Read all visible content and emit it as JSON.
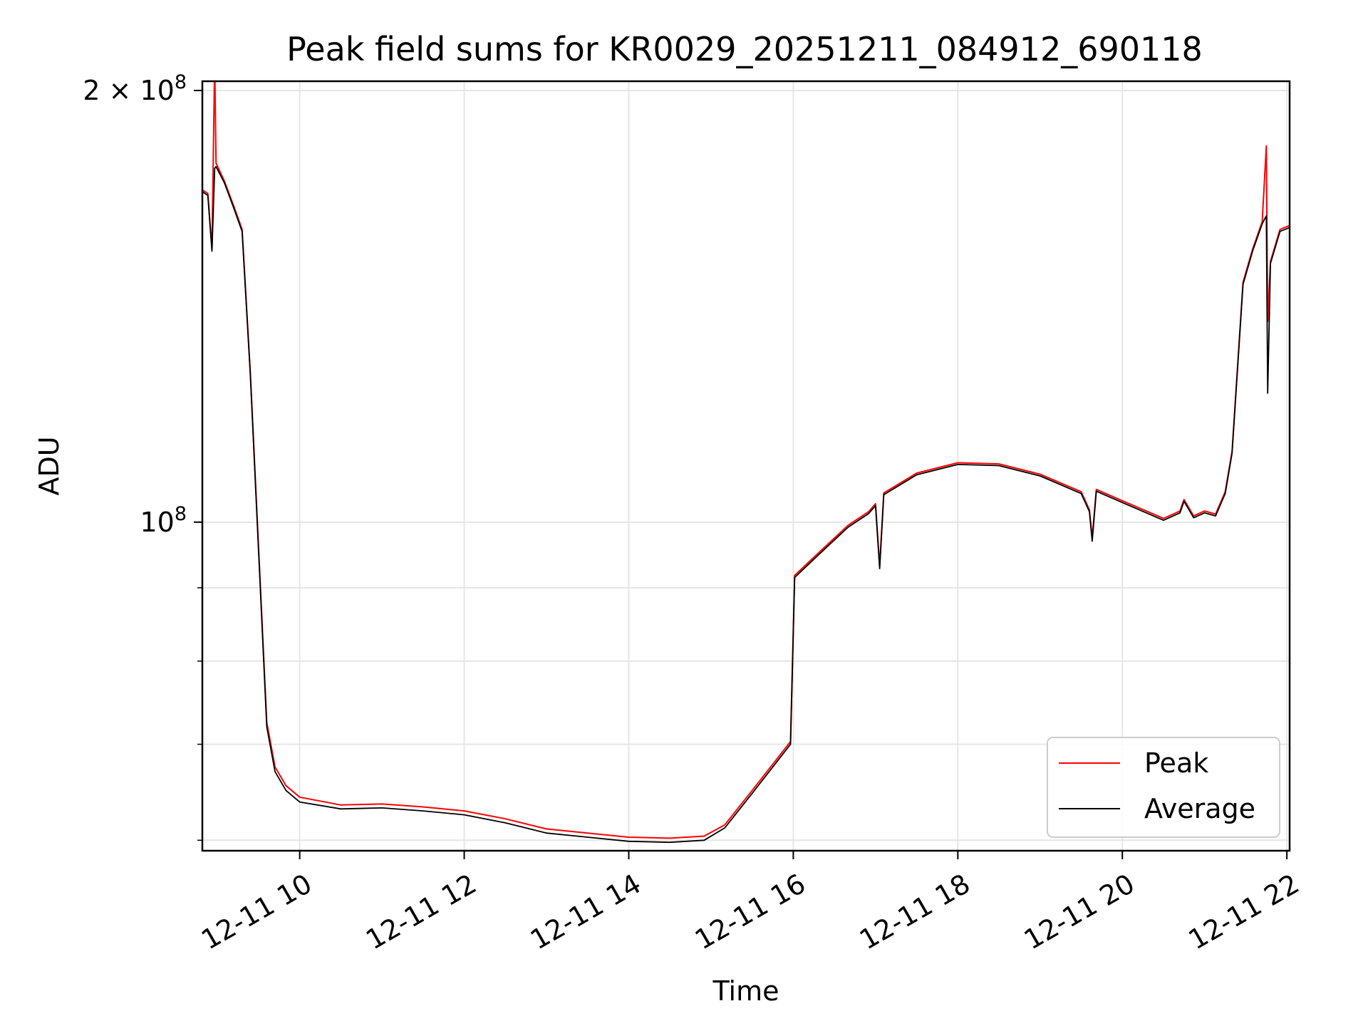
{
  "chart_data": {
    "type": "line",
    "title": "Peak field sums for KR0029_20251211_084912_690118",
    "xlabel": "Time",
    "ylabel": "ADU",
    "yscale": "log",
    "grid": true,
    "legend_position": "lower-right",
    "xlim": [
      "2025-12-11T08:49",
      "2025-12-11T22:02"
    ],
    "ylim": [
      59000000,
      203000000
    ],
    "x_ticks": [
      {
        "value": "2025-12-11T10:00",
        "label": "12-11 10"
      },
      {
        "value": "2025-12-11T12:00",
        "label": "12-11 12"
      },
      {
        "value": "2025-12-11T14:00",
        "label": "12-11 14"
      },
      {
        "value": "2025-12-11T16:00",
        "label": "12-11 16"
      },
      {
        "value": "2025-12-11T18:00",
        "label": "12-11 18"
      },
      {
        "value": "2025-12-11T20:00",
        "label": "12-11 20"
      },
      {
        "value": "2025-12-11T22:00",
        "label": "12-11 22"
      }
    ],
    "y_major_ticks": [
      {
        "value": 100000000,
        "base": "10",
        "exp": "8",
        "prefix": ""
      },
      {
        "value": 200000000,
        "base": "10",
        "exp": "8",
        "prefix": "2 × "
      }
    ],
    "y_minor_ticks": [
      60000000,
      70000000,
      80000000,
      90000000
    ],
    "series": [
      {
        "name": "Peak",
        "color": "#ff0000",
        "points": [
          [
            "2025-12-11T08:49",
            170500000
          ],
          [
            "2025-12-11T08:53",
            169500000
          ],
          [
            "2025-12-11T08:56",
            155000000
          ],
          [
            "2025-12-11T08:58",
            210000000
          ],
          [
            "2025-12-11T08:59",
            178000000
          ],
          [
            "2025-12-11T09:05",
            173000000
          ],
          [
            "2025-12-11T09:12",
            166000000
          ],
          [
            "2025-12-11T09:18",
            160000000
          ],
          [
            "2025-12-11T09:24",
            127000000
          ],
          [
            "2025-12-11T09:30",
            96000000
          ],
          [
            "2025-12-11T09:36",
            72500000
          ],
          [
            "2025-12-11T09:42",
            67500000
          ],
          [
            "2025-12-11T09:50",
            65500000
          ],
          [
            "2025-12-11T10:00",
            64300000
          ],
          [
            "2025-12-11T10:30",
            63500000
          ],
          [
            "2025-12-11T11:00",
            63600000
          ],
          [
            "2025-12-11T11:30",
            63300000
          ],
          [
            "2025-12-11T12:00",
            62900000
          ],
          [
            "2025-12-11T12:30",
            62100000
          ],
          [
            "2025-12-11T13:00",
            61100000
          ],
          [
            "2025-12-11T13:30",
            60700000
          ],
          [
            "2025-12-11T14:00",
            60300000
          ],
          [
            "2025-12-11T14:30",
            60200000
          ],
          [
            "2025-12-11T14:55",
            60400000
          ],
          [
            "2025-12-11T15:10",
            61500000
          ],
          [
            "2025-12-11T15:30",
            65000000
          ],
          [
            "2025-12-11T15:58",
            70300000
          ],
          [
            "2025-12-11T16:01",
            91800000
          ],
          [
            "2025-12-11T16:20",
            95500000
          ],
          [
            "2025-12-11T16:40",
            99500000
          ],
          [
            "2025-12-11T16:55",
            101700000
          ],
          [
            "2025-12-11T17:00",
            103000000
          ],
          [
            "2025-12-11T17:03",
            93200000
          ],
          [
            "2025-12-11T17:06",
            104800000
          ],
          [
            "2025-12-11T17:30",
            108200000
          ],
          [
            "2025-12-11T18:00",
            110000000
          ],
          [
            "2025-12-11T18:30",
            109800000
          ],
          [
            "2025-12-11T19:00",
            108000000
          ],
          [
            "2025-12-11T19:30",
            105000000
          ],
          [
            "2025-12-11T19:36",
            102000000
          ],
          [
            "2025-12-11T19:38",
            97500000
          ],
          [
            "2025-12-11T19:41",
            105400000
          ],
          [
            "2025-12-11T20:00",
            103500000
          ],
          [
            "2025-12-11T20:30",
            100600000
          ],
          [
            "2025-12-11T20:42",
            101800000
          ],
          [
            "2025-12-11T20:45",
            103700000
          ],
          [
            "2025-12-11T20:52",
            101000000
          ],
          [
            "2025-12-11T21:00",
            101800000
          ],
          [
            "2025-12-11T21:08",
            101300000
          ],
          [
            "2025-12-11T21:15",
            105000000
          ],
          [
            "2025-12-11T21:20",
            112000000
          ],
          [
            "2025-12-11T21:28",
            147000000
          ],
          [
            "2025-12-11T21:35",
            155000000
          ],
          [
            "2025-12-11T21:42",
            162000000
          ],
          [
            "2025-12-11T21:45",
            183000000
          ],
          [
            "2025-12-11T21:46",
            138000000
          ],
          [
            "2025-12-11T21:48",
            152000000
          ],
          [
            "2025-12-11T21:55",
            160000000
          ],
          [
            "2025-12-11T22:02",
            161000000
          ]
        ]
      },
      {
        "name": "Average",
        "color": "#000000",
        "points": [
          [
            "2025-12-11T08:49",
            170000000
          ],
          [
            "2025-12-11T08:53",
            169000000
          ],
          [
            "2025-12-11T08:56",
            154500000
          ],
          [
            "2025-12-11T08:58",
            176500000
          ],
          [
            "2025-12-11T08:59",
            177000000
          ],
          [
            "2025-12-11T09:05",
            172500000
          ],
          [
            "2025-12-11T09:12",
            165500000
          ],
          [
            "2025-12-11T09:18",
            159500000
          ],
          [
            "2025-12-11T09:24",
            126500000
          ],
          [
            "2025-12-11T09:30",
            95500000
          ],
          [
            "2025-12-11T09:36",
            72000000
          ],
          [
            "2025-12-11T09:42",
            67000000
          ],
          [
            "2025-12-11T09:50",
            65000000
          ],
          [
            "2025-12-11T10:00",
            63800000
          ],
          [
            "2025-12-11T10:30",
            63100000
          ],
          [
            "2025-12-11T11:00",
            63200000
          ],
          [
            "2025-12-11T11:30",
            62900000
          ],
          [
            "2025-12-11T12:00",
            62500000
          ],
          [
            "2025-12-11T12:30",
            61700000
          ],
          [
            "2025-12-11T13:00",
            60700000
          ],
          [
            "2025-12-11T13:30",
            60300000
          ],
          [
            "2025-12-11T14:00",
            59900000
          ],
          [
            "2025-12-11T14:30",
            59800000
          ],
          [
            "2025-12-11T14:55",
            60000000
          ],
          [
            "2025-12-11T15:10",
            61200000
          ],
          [
            "2025-12-11T15:30",
            64700000
          ],
          [
            "2025-12-11T15:58",
            70000000
          ],
          [
            "2025-12-11T16:01",
            91500000
          ],
          [
            "2025-12-11T16:20",
            95200000
          ],
          [
            "2025-12-11T16:40",
            99200000
          ],
          [
            "2025-12-11T16:55",
            101400000
          ],
          [
            "2025-12-11T17:00",
            102700000
          ],
          [
            "2025-12-11T17:03",
            92800000
          ],
          [
            "2025-12-11T17:06",
            104500000
          ],
          [
            "2025-12-11T17:30",
            107900000
          ],
          [
            "2025-12-11T18:00",
            109700000
          ],
          [
            "2025-12-11T18:30",
            109500000
          ],
          [
            "2025-12-11T19:00",
            107700000
          ],
          [
            "2025-12-11T19:30",
            104700000
          ],
          [
            "2025-12-11T19:36",
            101700000
          ],
          [
            "2025-12-11T19:38",
            97000000
          ],
          [
            "2025-12-11T19:41",
            105100000
          ],
          [
            "2025-12-11T20:00",
            103200000
          ],
          [
            "2025-12-11T20:30",
            100300000
          ],
          [
            "2025-12-11T20:42",
            101500000
          ],
          [
            "2025-12-11T20:45",
            103400000
          ],
          [
            "2025-12-11T20:52",
            100700000
          ],
          [
            "2025-12-11T21:00",
            101500000
          ],
          [
            "2025-12-11T21:08",
            101000000
          ],
          [
            "2025-12-11T21:15",
            104700000
          ],
          [
            "2025-12-11T21:20",
            111700000
          ],
          [
            "2025-12-11T21:28",
            146500000
          ],
          [
            "2025-12-11T21:35",
            154500000
          ],
          [
            "2025-12-11T21:42",
            161500000
          ],
          [
            "2025-12-11T21:45",
            163500000
          ],
          [
            "2025-12-11T21:46",
            123000000
          ],
          [
            "2025-12-11T21:48",
            151500000
          ],
          [
            "2025-12-11T21:55",
            159500000
          ],
          [
            "2025-12-11T22:02",
            160500000
          ]
        ]
      }
    ]
  }
}
